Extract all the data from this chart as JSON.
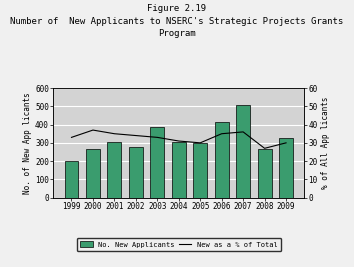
{
  "title_line1": "Figure 2.19",
  "title_line2": "Number of  New Applicants to NSERC’s Strategic Projects Grants\nProgram",
  "years": [
    "1999",
    "2000",
    "2001",
    "2002",
    "2003",
    "2004",
    "2005",
    "2006",
    "2007",
    "2008",
    "2009"
  ],
  "bar_values": [
    200,
    265,
    305,
    278,
    385,
    305,
    300,
    415,
    505,
    268,
    325
  ],
  "line_values": [
    33,
    37,
    35,
    34,
    33,
    31,
    30,
    35,
    36,
    27,
    30
  ],
  "bar_color": "#3a9c6e",
  "bar_edge_color": "#000000",
  "line_color": "#000000",
  "ylabel_left": "No. of New App licants",
  "ylabel_right": "% of All App licants",
  "ylim_left": [
    0,
    600
  ],
  "ylim_right": [
    0,
    60
  ],
  "yticks_left": [
    0,
    100,
    200,
    300,
    400,
    500,
    600
  ],
  "yticks_right": [
    0,
    10,
    20,
    30,
    40,
    50,
    60
  ],
  "background_color": "#f0f0f0",
  "plot_bg_color": "#d3d3d3",
  "legend_bar_label": "No. New Applicants",
  "legend_line_label": "New as a % of Total",
  "grid_color": "#ffffff",
  "title_fontsize": 6.5,
  "axis_fontsize": 5.5,
  "tick_fontsize": 5.5
}
